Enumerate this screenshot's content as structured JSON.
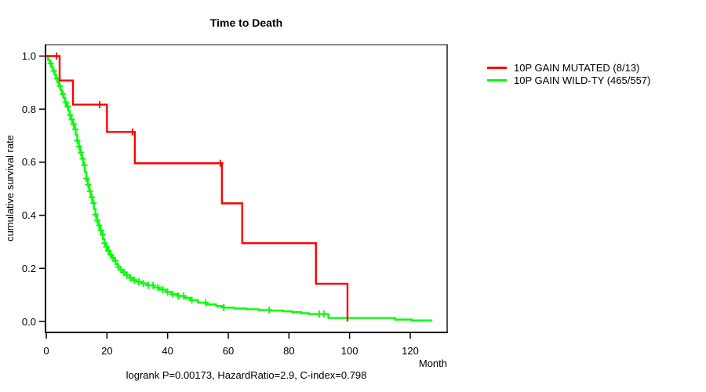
{
  "accent_colors": {
    "mutated": "#ff0000",
    "wildtype": "#00ff00",
    "box_shadow": "#8a8a8a",
    "axis": "#000000"
  },
  "chart_data": {
    "type": "line",
    "subtype": "kaplan-meier-step-survival",
    "title": "Time to Death",
    "xlabel": "Month",
    "ylabel": "cumulative survival rate",
    "annotation": "logrank P=0.00173, HazardRatio=2.9, C-index=0.798",
    "xlim": [
      0,
      132
    ],
    "ylim": [
      0.0,
      1.0
    ],
    "grid": false,
    "legend_position": "right-outside-top",
    "x_ticks": [
      {
        "v": 0,
        "label": "0"
      },
      {
        "v": 20,
        "label": "20"
      },
      {
        "v": 40,
        "label": "40"
      },
      {
        "v": 60,
        "label": "60"
      },
      {
        "v": 80,
        "label": "80"
      },
      {
        "v": 100,
        "label": "100"
      },
      {
        "v": 120,
        "label": "120"
      }
    ],
    "y_ticks": [
      {
        "v": 0.0,
        "label": "0.0"
      },
      {
        "v": 0.2,
        "label": "0.2"
      },
      {
        "v": 0.4,
        "label": "0.4"
      },
      {
        "v": 0.6,
        "label": "0.6"
      },
      {
        "v": 0.8,
        "label": "0.8"
      },
      {
        "v": 1.0,
        "label": "1.0"
      }
    ],
    "series": [
      {
        "name": "10P GAIN MUTATED (8/13)",
        "color": "#ff0000",
        "steps": [
          [
            0,
            1.0
          ],
          [
            4.4,
            0.908
          ],
          [
            8.8,
            0.817
          ],
          [
            20,
            0.714
          ],
          [
            29.2,
            0.596
          ],
          [
            57.9,
            0.445
          ],
          [
            64.6,
            0.295
          ],
          [
            88.9,
            0.142
          ],
          [
            99.3,
            0.0
          ]
        ],
        "censors": [
          3.4,
          17.6,
          28.4,
          57.4
        ]
      },
      {
        "name": "10P GAIN WILD-TY (465/557)",
        "color": "#00ff00",
        "steps": [
          [
            0,
            1.0
          ],
          [
            0.6,
            0.986
          ],
          [
            1.1,
            0.972
          ],
          [
            1.7,
            0.958
          ],
          [
            2.2,
            0.944
          ],
          [
            2.7,
            0.93
          ],
          [
            3.2,
            0.916
          ],
          [
            3.7,
            0.901
          ],
          [
            4.2,
            0.887
          ],
          [
            4.7,
            0.872
          ],
          [
            5.2,
            0.857
          ],
          [
            5.7,
            0.842
          ],
          [
            6.2,
            0.826
          ],
          [
            6.7,
            0.81
          ],
          [
            7.2,
            0.794
          ],
          [
            7.7,
            0.778
          ],
          [
            8.2,
            0.761
          ],
          [
            8.7,
            0.744
          ],
          [
            9.2,
            0.724
          ],
          [
            9.7,
            0.703
          ],
          [
            10.2,
            0.682
          ],
          [
            10.7,
            0.66
          ],
          [
            11.2,
            0.637
          ],
          [
            11.7,
            0.613
          ],
          [
            12.2,
            0.589
          ],
          [
            12.7,
            0.564
          ],
          [
            13.2,
            0.539
          ],
          [
            13.7,
            0.515
          ],
          [
            14.2,
            0.491
          ],
          [
            14.7,
            0.468
          ],
          [
            15.2,
            0.446
          ],
          [
            15.7,
            0.424
          ],
          [
            16.2,
            0.403
          ],
          [
            16.7,
            0.382
          ],
          [
            17.2,
            0.362
          ],
          [
            17.7,
            0.344
          ],
          [
            18.2,
            0.327
          ],
          [
            18.7,
            0.31
          ],
          [
            19.2,
            0.295
          ],
          [
            19.7,
            0.281
          ],
          [
            20.3,
            0.266
          ],
          [
            20.9,
            0.252
          ],
          [
            21.5,
            0.24
          ],
          [
            22.2,
            0.228
          ],
          [
            22.9,
            0.216
          ],
          [
            23.7,
            0.205
          ],
          [
            24.5,
            0.195
          ],
          [
            25.4,
            0.185
          ],
          [
            26.4,
            0.174
          ],
          [
            27.4,
            0.164
          ],
          [
            28.5,
            0.156
          ],
          [
            29.7,
            0.15
          ],
          [
            31.4,
            0.143
          ],
          [
            33.4,
            0.136
          ],
          [
            35.4,
            0.128
          ],
          [
            37.4,
            0.12
          ],
          [
            39.4,
            0.111
          ],
          [
            41.4,
            0.103
          ],
          [
            43.4,
            0.096
          ],
          [
            45.4,
            0.089
          ],
          [
            47.4,
            0.08
          ],
          [
            50,
            0.071
          ],
          [
            53,
            0.064
          ],
          [
            56,
            0.058
          ],
          [
            58.5,
            0.052
          ],
          [
            62,
            0.049
          ],
          [
            66,
            0.046
          ],
          [
            70,
            0.043
          ],
          [
            74,
            0.041
          ],
          [
            78,
            0.038
          ],
          [
            81,
            0.035
          ],
          [
            84,
            0.031
          ],
          [
            86.5,
            0.028
          ],
          [
            93,
            0.013
          ],
          [
            115,
            0.007
          ],
          [
            120.5,
            0.004
          ],
          [
            127,
            0.003
          ]
        ],
        "censors": [
          1.5,
          2.5,
          3.5,
          4.5,
          5.5,
          6.4,
          7.1,
          7.8,
          8.4,
          9.0,
          9.6,
          10.2,
          10.8,
          11.4,
          12.0,
          12.6,
          13.2,
          13.8,
          14.4,
          15.0,
          15.6,
          16.2,
          16.8,
          17.4,
          18.0,
          18.6,
          19.2,
          19.8,
          20.5,
          21.2,
          22.0,
          22.8,
          23.7,
          24.6,
          25.6,
          26.6,
          27.7,
          29.0,
          30.5,
          32.0,
          33.6,
          35.2,
          36.8,
          38.4,
          40.0,
          41.7,
          43.5,
          45.3,
          48.0,
          52.5,
          58.5,
          73.5,
          90.0,
          91.5
        ]
      }
    ]
  }
}
